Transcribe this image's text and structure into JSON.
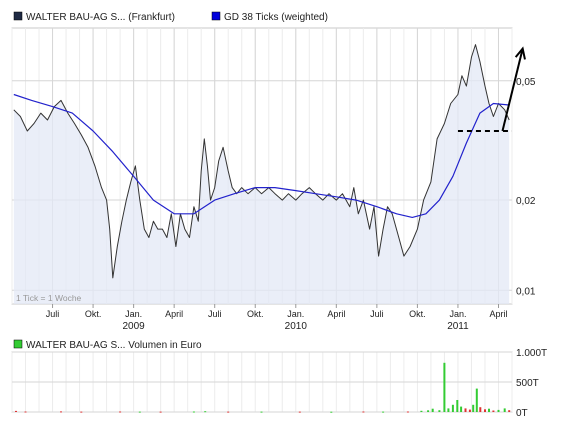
{
  "chart_data": [
    {
      "type": "line",
      "y_scale": "log",
      "ylim": [
        0.009,
        0.075
      ],
      "y_ticks": [
        {
          "value": 0.01,
          "label": "0,01"
        },
        {
          "value": 0.02,
          "label": "0,02"
        },
        {
          "value": 0.05,
          "label": "0,05"
        }
      ],
      "x_month_range": [
        "2008-04",
        "2011-05"
      ],
      "x_ticks": [
        {
          "month": "2008-07",
          "label": "Juli"
        },
        {
          "month": "2008-10",
          "label": "Okt."
        },
        {
          "month": "2009-01",
          "label": "Jan.",
          "year": "2009"
        },
        {
          "month": "2009-04",
          "label": "April"
        },
        {
          "month": "2009-07",
          "label": "Juli"
        },
        {
          "month": "2009-10",
          "label": "Okt."
        },
        {
          "month": "2010-01",
          "label": "Jan.",
          "year": "2010"
        },
        {
          "month": "2010-04",
          "label": "April"
        },
        {
          "month": "2010-07",
          "label": "Juli"
        },
        {
          "month": "2010-10",
          "label": "Okt."
        },
        {
          "month": "2011-01",
          "label": "Jan.",
          "year": "2011"
        },
        {
          "month": "2011-04",
          "label": "April"
        }
      ],
      "grid": true,
      "note": "1 Tick = 1 Woche",
      "legend_position": "top-left",
      "series": [
        {
          "name": "WALTER BAU-AG S... (Frankfurt)",
          "color": "#333333",
          "legend_color": "#1f2a44",
          "points": [
            [
              "2008-04-05",
              0.04
            ],
            [
              "2008-04-20",
              0.038
            ],
            [
              "2008-05-05",
              0.034
            ],
            [
              "2008-05-20",
              0.036
            ],
            [
              "2008-06-05",
              0.039
            ],
            [
              "2008-06-20",
              0.037
            ],
            [
              "2008-07-05",
              0.041
            ],
            [
              "2008-07-20",
              0.043
            ],
            [
              "2008-08-05",
              0.039
            ],
            [
              "2008-08-20",
              0.036
            ],
            [
              "2008-09-05",
              0.033
            ],
            [
              "2008-09-20",
              0.03
            ],
            [
              "2008-10-05",
              0.026
            ],
            [
              "2008-10-20",
              0.022
            ],
            [
              "2008-11-01",
              0.02
            ],
            [
              "2008-11-08",
              0.016
            ],
            [
              "2008-11-15",
              0.011
            ],
            [
              "2008-11-25",
              0.014
            ],
            [
              "2008-12-05",
              0.017
            ],
            [
              "2008-12-15",
              0.02
            ],
            [
              "2008-12-25",
              0.023
            ],
            [
              "2009-01-05",
              0.026
            ],
            [
              "2009-01-15",
              0.02
            ],
            [
              "2009-01-25",
              0.016
            ],
            [
              "2009-02-05",
              0.015
            ],
            [
              "2009-02-15",
              0.017
            ],
            [
              "2009-02-25",
              0.016
            ],
            [
              "2009-03-05",
              0.016
            ],
            [
              "2009-03-15",
              0.015
            ],
            [
              "2009-03-25",
              0.018
            ],
            [
              "2009-04-05",
              0.014
            ],
            [
              "2009-04-15",
              0.018
            ],
            [
              "2009-04-25",
              0.016
            ],
            [
              "2009-05-05",
              0.015
            ],
            [
              "2009-05-15",
              0.019
            ],
            [
              "2009-05-25",
              0.017
            ],
            [
              "2009-06-01",
              0.025
            ],
            [
              "2009-06-08",
              0.032
            ],
            [
              "2009-06-15",
              0.026
            ],
            [
              "2009-06-22",
              0.02
            ],
            [
              "2009-07-01",
              0.022
            ],
            [
              "2009-07-10",
              0.027
            ],
            [
              "2009-07-20",
              0.03
            ],
            [
              "2009-08-01",
              0.025
            ],
            [
              "2009-08-10",
              0.022
            ],
            [
              "2009-08-20",
              0.021
            ],
            [
              "2009-09-01",
              0.022
            ],
            [
              "2009-09-15",
              0.021
            ],
            [
              "2009-10-01",
              0.022
            ],
            [
              "2009-10-15",
              0.021
            ],
            [
              "2009-11-01",
              0.022
            ],
            [
              "2009-11-15",
              0.021
            ],
            [
              "2009-12-01",
              0.02
            ],
            [
              "2009-12-15",
              0.021
            ],
            [
              "2010-01-01",
              0.02
            ],
            [
              "2010-01-15",
              0.021
            ],
            [
              "2010-02-01",
              0.022
            ],
            [
              "2010-02-15",
              0.021
            ],
            [
              "2010-03-01",
              0.02
            ],
            [
              "2010-03-15",
              0.021
            ],
            [
              "2010-04-01",
              0.02
            ],
            [
              "2010-04-15",
              0.021
            ],
            [
              "2010-05-01",
              0.019
            ],
            [
              "2010-05-10",
              0.022
            ],
            [
              "2010-05-20",
              0.018
            ],
            [
              "2010-06-01",
              0.02
            ],
            [
              "2010-06-15",
              0.016
            ],
            [
              "2010-06-25",
              0.019
            ],
            [
              "2010-07-05",
              0.013
            ],
            [
              "2010-07-15",
              0.016
            ],
            [
              "2010-07-25",
              0.019
            ],
            [
              "2010-08-05",
              0.018
            ],
            [
              "2010-08-20",
              0.015
            ],
            [
              "2010-09-01",
              0.013
            ],
            [
              "2010-09-15",
              0.014
            ],
            [
              "2010-10-01",
              0.016
            ],
            [
              "2010-10-15",
              0.02
            ],
            [
              "2010-11-01",
              0.023
            ],
            [
              "2010-11-15",
              0.032
            ],
            [
              "2010-12-01",
              0.036
            ],
            [
              "2010-12-15",
              0.042
            ],
            [
              "2011-01-01",
              0.045
            ],
            [
              "2011-01-10",
              0.052
            ],
            [
              "2011-01-20",
              0.048
            ],
            [
              "2011-02-01",
              0.06
            ],
            [
              "2011-02-10",
              0.066
            ],
            [
              "2011-02-20",
              0.058
            ],
            [
              "2011-03-01",
              0.048
            ],
            [
              "2011-03-10",
              0.042
            ],
            [
              "2011-03-20",
              0.038
            ],
            [
              "2011-04-01",
              0.042
            ],
            [
              "2011-04-15",
              0.04
            ],
            [
              "2011-04-25",
              0.037
            ]
          ]
        },
        {
          "name": "GD 38 Ticks (weighted)",
          "color": "#2222cc",
          "legend_color": "#0000dd",
          "points": [
            [
              "2008-04-05",
              0.045
            ],
            [
              "2008-05-15",
              0.043
            ],
            [
              "2008-07-01",
              0.041
            ],
            [
              "2008-08-15",
              0.039
            ],
            [
              "2008-10-01",
              0.034
            ],
            [
              "2008-11-15",
              0.029
            ],
            [
              "2009-01-01",
              0.024
            ],
            [
              "2009-02-15",
              0.02
            ],
            [
              "2009-04-01",
              0.018
            ],
            [
              "2009-05-15",
              0.018
            ],
            [
              "2009-07-01",
              0.02
            ],
            [
              "2009-08-15",
              0.021
            ],
            [
              "2009-10-01",
              0.022
            ],
            [
              "2009-11-15",
              0.022
            ],
            [
              "2010-01-01",
              0.0215
            ],
            [
              "2010-02-15",
              0.021
            ],
            [
              "2010-04-01",
              0.0205
            ],
            [
              "2010-05-15",
              0.02
            ],
            [
              "2010-07-01",
              0.019
            ],
            [
              "2010-08-15",
              0.018
            ],
            [
              "2010-09-20",
              0.0175
            ],
            [
              "2010-10-20",
              0.018
            ],
            [
              "2010-11-20",
              0.02
            ],
            [
              "2010-12-20",
              0.024
            ],
            [
              "2011-01-20",
              0.031
            ],
            [
              "2011-02-20",
              0.039
            ],
            [
              "2011-03-20",
              0.042
            ],
            [
              "2011-04-25",
              0.0415
            ]
          ]
        }
      ],
      "annotations": {
        "support_line": {
          "value": 0.034,
          "from": "2011-01-01",
          "to": "2011-05-01",
          "style": "dashed"
        },
        "arrow": {
          "from": [
            "2011-04-10",
            0.034
          ],
          "to": [
            "2011-05-25",
            0.064
          ]
        }
      }
    },
    {
      "type": "bar",
      "legend_position": "top-left",
      "series_name": "WALTER BAU-AG S... Volumen in Euro",
      "legend_color": "#33cc33",
      "ylim": [
        0,
        1000
      ],
      "y_ticks": [
        {
          "value": 1000,
          "label": "1.000T"
        },
        {
          "value": 500,
          "label": "500T"
        },
        {
          "value": 0,
          "label": "0T"
        }
      ],
      "bars": [
        {
          "date": "2008-04-10",
          "value": 18,
          "color": "red"
        },
        {
          "date": "2008-05-01",
          "value": 8,
          "color": "red"
        },
        {
          "date": "2008-07-20",
          "value": 10,
          "color": "red"
        },
        {
          "date": "2008-09-05",
          "value": 6,
          "color": "red"
        },
        {
          "date": "2008-12-01",
          "value": 8,
          "color": "red"
        },
        {
          "date": "2009-01-15",
          "value": 6,
          "color": "green"
        },
        {
          "date": "2009-03-01",
          "value": 7,
          "color": "red"
        },
        {
          "date": "2009-05-15",
          "value": 9,
          "color": "green"
        },
        {
          "date": "2009-06-10",
          "value": 14,
          "color": "green"
        },
        {
          "date": "2009-08-01",
          "value": 6,
          "color": "red"
        },
        {
          "date": "2009-10-15",
          "value": 7,
          "color": "green"
        },
        {
          "date": "2010-01-10",
          "value": 6,
          "color": "red"
        },
        {
          "date": "2010-03-20",
          "value": 5,
          "color": "green"
        },
        {
          "date": "2010-06-01",
          "value": 9,
          "color": "red"
        },
        {
          "date": "2010-07-15",
          "value": 6,
          "color": "green"
        },
        {
          "date": "2010-09-10",
          "value": 8,
          "color": "red"
        },
        {
          "date": "2010-10-10",
          "value": 20,
          "color": "green"
        },
        {
          "date": "2010-10-25",
          "value": 28,
          "color": "green"
        },
        {
          "date": "2010-11-05",
          "value": 55,
          "color": "green"
        },
        {
          "date": "2010-11-20",
          "value": 30,
          "color": "green"
        },
        {
          "date": "2010-12-01",
          "value": 820,
          "color": "green"
        },
        {
          "date": "2010-12-10",
          "value": 60,
          "color": "green"
        },
        {
          "date": "2010-12-20",
          "value": 120,
          "color": "green"
        },
        {
          "date": "2010-12-30",
          "value": 200,
          "color": "green"
        },
        {
          "date": "2011-01-08",
          "value": 90,
          "color": "green"
        },
        {
          "date": "2011-01-18",
          "value": 60,
          "color": "red"
        },
        {
          "date": "2011-01-28",
          "value": 40,
          "color": "red"
        },
        {
          "date": "2011-02-05",
          "value": 120,
          "color": "green"
        },
        {
          "date": "2011-02-13",
          "value": 390,
          "color": "green"
        },
        {
          "date": "2011-02-21",
          "value": 80,
          "color": "red"
        },
        {
          "date": "2011-03-01",
          "value": 45,
          "color": "red"
        },
        {
          "date": "2011-03-10",
          "value": 55,
          "color": "green"
        },
        {
          "date": "2011-03-20",
          "value": 25,
          "color": "red"
        },
        {
          "date": "2011-04-01",
          "value": 35,
          "color": "green"
        },
        {
          "date": "2011-04-15",
          "value": 60,
          "color": "green"
        },
        {
          "date": "2011-04-25",
          "value": 30,
          "color": "red"
        }
      ]
    }
  ]
}
